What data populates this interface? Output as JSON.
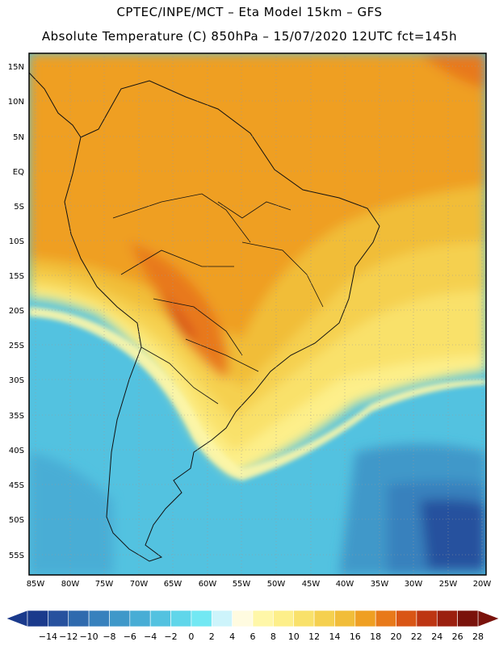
{
  "header": {
    "line1": "CPTEC/INPE/MCT –  Eta Model 15km – GFS",
    "line2": "Absolute Temperature (C) 850hPa – 15/07/2020 12UTC fct=145h"
  },
  "map": {
    "lat_labels": [
      "15N",
      "10N",
      "5N",
      "EQ",
      "5S",
      "10S",
      "15S",
      "20S",
      "25S",
      "30S",
      "35S",
      "40S",
      "45S",
      "50S",
      "55S"
    ],
    "lon_labels": [
      "85W",
      "80W",
      "75W",
      "70W",
      "65W",
      "60W",
      "55W",
      "50W",
      "45W",
      "40W",
      "35W",
      "30W",
      "25W",
      "20W"
    ]
  },
  "colorbar": {
    "labels": [
      "-14",
      "-12",
      "-10",
      "-8",
      "-6",
      "-4",
      "-2",
      "0",
      "2",
      "4",
      "6",
      "8",
      "10",
      "12",
      "14",
      "16",
      "18",
      "20",
      "22",
      "24",
      "26",
      "28"
    ],
    "colors": [
      "#1a3a8c",
      "#27519e",
      "#2f6aae",
      "#3781bd",
      "#3f98c9",
      "#48add5",
      "#53c2e0",
      "#60d6ea",
      "#72e8f3",
      "#cdf4fb",
      "#fffbe0",
      "#fff7a8",
      "#fdef8a",
      "#f9e16a",
      "#f5d04f",
      "#f1bd39",
      "#ef9f22",
      "#e8791a",
      "#d95515",
      "#bd3512",
      "#9b1f0e",
      "#7a120b"
    ]
  }
}
